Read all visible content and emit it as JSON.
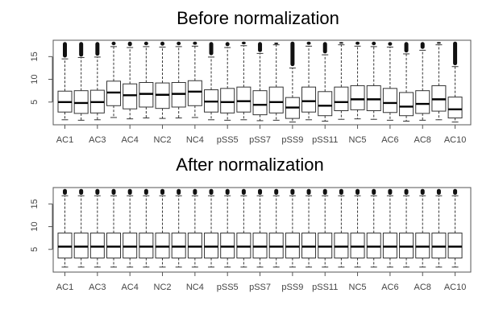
{
  "chart_data": [
    {
      "type": "boxplot",
      "title": "Before normalization",
      "xlabel": "",
      "ylabel": "",
      "ylim": [
        0,
        18.6
      ],
      "yticks": [
        5,
        10,
        15
      ],
      "xtick_labels": [
        "AC1",
        "AC3",
        "AC4",
        "NC2",
        "NC4",
        "pSS5",
        "pSS7",
        "pSS9",
        "pSS11",
        "NC5",
        "AC6",
        "AC8",
        "AC10"
      ],
      "grid": false,
      "boxes": [
        {
          "q1": 2.8,
          "median": 5.0,
          "q3": 7.4,
          "whisker_low": 1.1,
          "whisker_high": 14.5,
          "outlier_min": 14.8,
          "outlier_max": 18.2
        },
        {
          "q1": 2.5,
          "median": 4.8,
          "q3": 7.5,
          "whisker_low": 1.0,
          "whisker_high": 14.8,
          "outlier_min": 15.0,
          "outlier_max": 18.2
        },
        {
          "q1": 2.6,
          "median": 5.0,
          "q3": 7.6,
          "whisker_low": 1.1,
          "whisker_high": 14.9,
          "outlier_min": 15.2,
          "outlier_max": 18.2
        },
        {
          "q1": 4.2,
          "median": 7.1,
          "q3": 9.6,
          "whisker_low": 1.6,
          "whisker_high": 17.2,
          "outlier_min": 17.5,
          "outlier_max": 18.3
        },
        {
          "q1": 3.5,
          "median": 6.5,
          "q3": 9.0,
          "whisker_low": 1.3,
          "whisker_high": 17.0,
          "outlier_min": 17.3,
          "outlier_max": 18.3
        },
        {
          "q1": 3.9,
          "median": 6.8,
          "q3": 9.3,
          "whisker_low": 1.5,
          "whisker_high": 17.2,
          "outlier_min": 17.5,
          "outlier_max": 18.3
        },
        {
          "q1": 3.6,
          "median": 6.6,
          "q3": 9.2,
          "whisker_low": 1.4,
          "whisker_high": 17.1,
          "outlier_min": 17.4,
          "outlier_max": 18.3
        },
        {
          "q1": 3.9,
          "median": 6.8,
          "q3": 9.3,
          "whisker_low": 1.5,
          "whisker_high": 17.2,
          "outlier_min": 17.5,
          "outlier_max": 18.3
        },
        {
          "q1": 4.2,
          "median": 7.3,
          "q3": 9.7,
          "whisker_low": 1.6,
          "whisker_high": 17.3,
          "outlier_min": 17.6,
          "outlier_max": 18.3
        },
        {
          "q1": 2.8,
          "median": 5.1,
          "q3": 7.7,
          "whisker_low": 1.1,
          "whisker_high": 14.9,
          "outlier_min": 15.3,
          "outlier_max": 18.2
        },
        {
          "q1": 2.6,
          "median": 5.0,
          "q3": 8.0,
          "whisker_low": 1.0,
          "whisker_high": 17.0,
          "outlier_min": 17.3,
          "outlier_max": 18.2
        },
        {
          "q1": 2.8,
          "median": 5.2,
          "q3": 8.3,
          "whisker_low": 1.1,
          "whisker_high": 17.4,
          "outlier_min": 17.7,
          "outlier_max": 18.3
        },
        {
          "q1": 2.2,
          "median": 4.4,
          "q3": 7.5,
          "whisker_low": 0.9,
          "whisker_high": 15.7,
          "outlier_min": 16.0,
          "outlier_max": 18.2
        },
        {
          "q1": 2.6,
          "median": 5.0,
          "q3": 8.3,
          "whisker_low": 1.0,
          "whisker_high": 17.6,
          "outlier_min": 17.9,
          "outlier_max": 18.1
        },
        {
          "q1": 1.4,
          "median": 3.8,
          "q3": 6.0,
          "whisker_low": 0.6,
          "whisker_high": 12.5,
          "outlier_min": 12.9,
          "outlier_max": 18.3
        },
        {
          "q1": 2.8,
          "median": 5.2,
          "q3": 8.3,
          "whisker_low": 1.1,
          "whisker_high": 17.3,
          "outlier_min": 17.6,
          "outlier_max": 18.3
        },
        {
          "q1": 2.0,
          "median": 4.2,
          "q3": 7.3,
          "whisker_low": 0.8,
          "whisker_high": 15.4,
          "outlier_min": 15.7,
          "outlier_max": 18.2
        },
        {
          "q1": 3.1,
          "median": 5.0,
          "q3": 8.3,
          "whisker_low": 1.2,
          "whisker_high": 17.6,
          "outlier_min": 17.9,
          "outlier_max": 18.2
        },
        {
          "q1": 3.3,
          "median": 5.6,
          "q3": 8.6,
          "whisker_low": 1.3,
          "whisker_high": 17.3,
          "outlier_min": 17.6,
          "outlier_max": 18.3
        },
        {
          "q1": 3.1,
          "median": 5.6,
          "q3": 8.6,
          "whisker_low": 1.2,
          "whisker_high": 17.2,
          "outlier_min": 17.5,
          "outlier_max": 18.3
        },
        {
          "q1": 2.7,
          "median": 4.8,
          "q3": 8.0,
          "whisker_low": 1.0,
          "whisker_high": 17.1,
          "outlier_min": 17.4,
          "outlier_max": 18.2
        },
        {
          "q1": 2.0,
          "median": 4.0,
          "q3": 7.1,
          "whisker_low": 0.8,
          "whisker_high": 15.6,
          "outlier_min": 15.9,
          "outlier_max": 18.2
        },
        {
          "q1": 2.5,
          "median": 4.6,
          "q3": 7.5,
          "whisker_low": 1.0,
          "whisker_high": 16.4,
          "outlier_min": 16.7,
          "outlier_max": 18.2
        },
        {
          "q1": 3.0,
          "median": 5.6,
          "q3": 8.6,
          "whisker_low": 1.1,
          "whisker_high": 17.6,
          "outlier_min": 17.9,
          "outlier_max": 18.2
        },
        {
          "q1": 1.5,
          "median": 3.4,
          "q3": 6.1,
          "whisker_low": 0.6,
          "whisker_high": 12.8,
          "outlier_min": 13.1,
          "outlier_max": 18.3
        }
      ]
    },
    {
      "type": "boxplot",
      "title": "After normalization",
      "xlabel": "",
      "ylabel": "",
      "ylim": [
        0,
        18.6
      ],
      "yticks": [
        5,
        10,
        15
      ],
      "xtick_labels": [
        "AC1",
        "AC3",
        "AC4",
        "NC2",
        "NC4",
        "pSS5",
        "pSS7",
        "pSS9",
        "pSS11",
        "NC5",
        "AC6",
        "AC8",
        "AC10"
      ],
      "grid": false,
      "boxes": [
        {
          "q1": 3.1,
          "median": 5.6,
          "q3": 8.6,
          "whisker_low": 1.1,
          "whisker_high": 16.8,
          "outlier_min": 17.0,
          "outlier_max": 18.3
        },
        {
          "q1": 3.1,
          "median": 5.6,
          "q3": 8.6,
          "whisker_low": 1.1,
          "whisker_high": 16.8,
          "outlier_min": 17.0,
          "outlier_max": 18.3
        },
        {
          "q1": 3.1,
          "median": 5.6,
          "q3": 8.6,
          "whisker_low": 1.1,
          "whisker_high": 16.8,
          "outlier_min": 17.0,
          "outlier_max": 18.3
        },
        {
          "q1": 3.1,
          "median": 5.6,
          "q3": 8.6,
          "whisker_low": 1.1,
          "whisker_high": 16.8,
          "outlier_min": 17.0,
          "outlier_max": 18.3
        },
        {
          "q1": 3.1,
          "median": 5.6,
          "q3": 8.6,
          "whisker_low": 1.1,
          "whisker_high": 16.8,
          "outlier_min": 17.0,
          "outlier_max": 18.3
        },
        {
          "q1": 3.1,
          "median": 5.6,
          "q3": 8.6,
          "whisker_low": 1.1,
          "whisker_high": 16.8,
          "outlier_min": 17.0,
          "outlier_max": 18.3
        },
        {
          "q1": 3.1,
          "median": 5.6,
          "q3": 8.6,
          "whisker_low": 1.1,
          "whisker_high": 16.8,
          "outlier_min": 17.0,
          "outlier_max": 18.3
        },
        {
          "q1": 3.1,
          "median": 5.6,
          "q3": 8.6,
          "whisker_low": 1.1,
          "whisker_high": 16.8,
          "outlier_min": 17.0,
          "outlier_max": 18.3
        },
        {
          "q1": 3.1,
          "median": 5.6,
          "q3": 8.6,
          "whisker_low": 1.1,
          "whisker_high": 16.8,
          "outlier_min": 17.0,
          "outlier_max": 18.3
        },
        {
          "q1": 3.1,
          "median": 5.6,
          "q3": 8.6,
          "whisker_low": 1.1,
          "whisker_high": 16.8,
          "outlier_min": 17.0,
          "outlier_max": 18.3
        },
        {
          "q1": 3.1,
          "median": 5.6,
          "q3": 8.6,
          "whisker_low": 1.1,
          "whisker_high": 16.8,
          "outlier_min": 17.0,
          "outlier_max": 18.3
        },
        {
          "q1": 3.1,
          "median": 5.6,
          "q3": 8.6,
          "whisker_low": 1.1,
          "whisker_high": 16.8,
          "outlier_min": 17.0,
          "outlier_max": 18.3
        },
        {
          "q1": 3.1,
          "median": 5.6,
          "q3": 8.6,
          "whisker_low": 1.1,
          "whisker_high": 16.8,
          "outlier_min": 17.0,
          "outlier_max": 18.3
        },
        {
          "q1": 3.1,
          "median": 5.6,
          "q3": 8.6,
          "whisker_low": 1.1,
          "whisker_high": 16.8,
          "outlier_min": 17.0,
          "outlier_max": 18.3
        },
        {
          "q1": 3.1,
          "median": 5.6,
          "q3": 8.6,
          "whisker_low": 1.1,
          "whisker_high": 16.8,
          "outlier_min": 17.0,
          "outlier_max": 18.3
        },
        {
          "q1": 3.1,
          "median": 5.6,
          "q3": 8.6,
          "whisker_low": 1.1,
          "whisker_high": 16.8,
          "outlier_min": 17.0,
          "outlier_max": 18.3
        },
        {
          "q1": 3.1,
          "median": 5.6,
          "q3": 8.6,
          "whisker_low": 1.1,
          "whisker_high": 16.8,
          "outlier_min": 17.0,
          "outlier_max": 18.3
        },
        {
          "q1": 3.1,
          "median": 5.6,
          "q3": 8.6,
          "whisker_low": 1.1,
          "whisker_high": 16.8,
          "outlier_min": 17.0,
          "outlier_max": 18.3
        },
        {
          "q1": 3.1,
          "median": 5.6,
          "q3": 8.6,
          "whisker_low": 1.1,
          "whisker_high": 16.8,
          "outlier_min": 17.0,
          "outlier_max": 18.3
        },
        {
          "q1": 3.1,
          "median": 5.6,
          "q3": 8.6,
          "whisker_low": 1.1,
          "whisker_high": 16.8,
          "outlier_min": 17.0,
          "outlier_max": 18.3
        },
        {
          "q1": 3.1,
          "median": 5.6,
          "q3": 8.6,
          "whisker_low": 1.1,
          "whisker_high": 16.8,
          "outlier_min": 17.0,
          "outlier_max": 18.3
        },
        {
          "q1": 3.1,
          "median": 5.6,
          "q3": 8.6,
          "whisker_low": 1.1,
          "whisker_high": 16.8,
          "outlier_min": 17.0,
          "outlier_max": 18.3
        },
        {
          "q1": 3.1,
          "median": 5.6,
          "q3": 8.6,
          "whisker_low": 1.1,
          "whisker_high": 16.8,
          "outlier_min": 17.0,
          "outlier_max": 18.3
        },
        {
          "q1": 3.1,
          "median": 5.6,
          "q3": 8.6,
          "whisker_low": 1.1,
          "whisker_high": 16.8,
          "outlier_min": 17.0,
          "outlier_max": 18.3
        },
        {
          "q1": 3.1,
          "median": 5.6,
          "q3": 8.6,
          "whisker_low": 1.1,
          "whisker_high": 16.8,
          "outlier_min": 17.0,
          "outlier_max": 18.3
        }
      ]
    }
  ]
}
